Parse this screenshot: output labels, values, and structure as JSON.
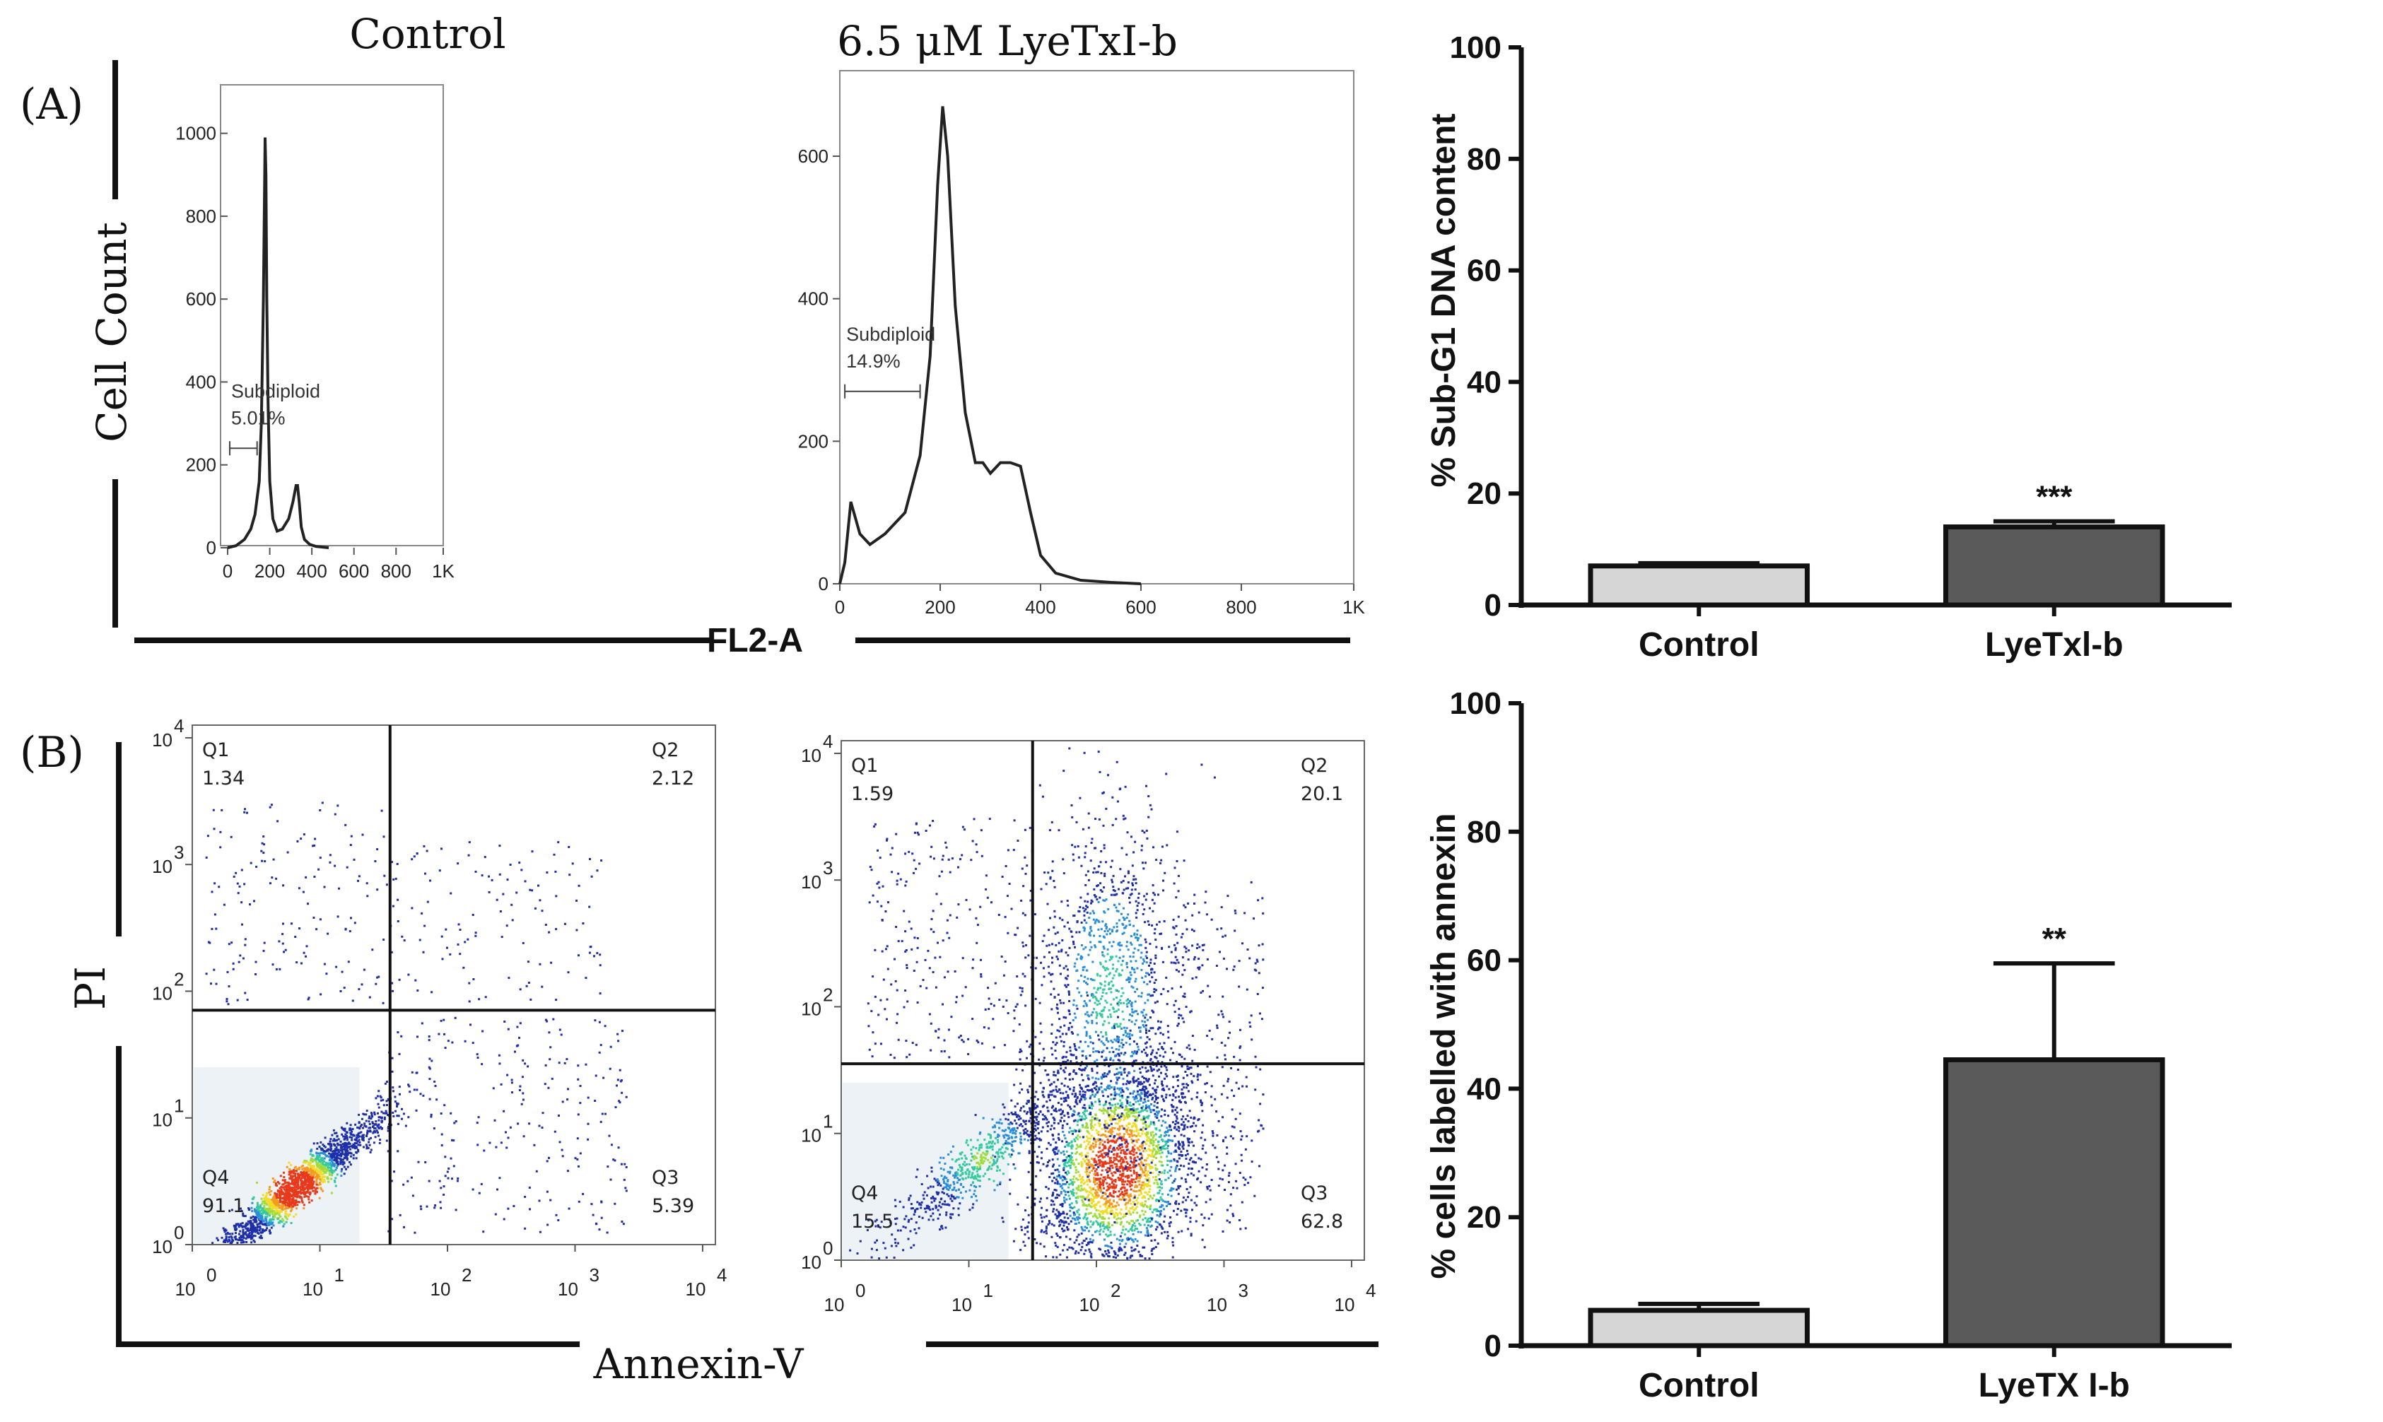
{
  "figure": {
    "panel_a_label": "(A)",
    "panel_b_label": "(B)"
  },
  "chart_data": [
    {
      "id": "hist-control",
      "type": "line",
      "title": "Control",
      "xlabel": "FL2-A",
      "ylabel": "Cell Count",
      "xlim": [
        0,
        1024
      ],
      "ylim": [
        0,
        1100
      ],
      "x_ticks": [
        "0",
        "200",
        "400",
        "600",
        "800",
        "1K"
      ],
      "y_ticks": [
        "0",
        "200",
        "400",
        "600",
        "800",
        "1000"
      ],
      "gate_label": "Subdiploid",
      "gate_value": "5.01%",
      "gate_range": [
        10,
        140
      ],
      "x": [
        0,
        40,
        80,
        110,
        130,
        150,
        160,
        170,
        178,
        182,
        186,
        192,
        200,
        215,
        235,
        260,
        290,
        310,
        325,
        332,
        340,
        350,
        365,
        390,
        420,
        480
      ],
      "y": [
        0,
        5,
        20,
        45,
        80,
        160,
        300,
        600,
        990,
        900,
        600,
        350,
        160,
        70,
        40,
        45,
        70,
        110,
        150,
        150,
        110,
        50,
        20,
        8,
        3,
        0
      ]
    },
    {
      "id": "hist-lyetx",
      "type": "line",
      "title": "6.5 μM LyeTxI-b",
      "xlabel": "FL2-A",
      "xlim": [
        0,
        1024
      ],
      "ylim": [
        0,
        720
      ],
      "x_ticks": [
        "0",
        "200",
        "400",
        "600",
        "800",
        "1K"
      ],
      "y_ticks": [
        "0",
        "200",
        "400",
        "600"
      ],
      "gate_label": "Subdiploid",
      "gate_value": "14.9%",
      "gate_range": [
        10,
        160
      ],
      "x": [
        0,
        10,
        22,
        40,
        60,
        90,
        130,
        160,
        180,
        195,
        205,
        215,
        230,
        250,
        270,
        285,
        300,
        320,
        340,
        360,
        380,
        400,
        430,
        480,
        540,
        600
      ],
      "y": [
        0,
        30,
        115,
        70,
        55,
        70,
        100,
        180,
        320,
        560,
        670,
        600,
        390,
        240,
        170,
        170,
        155,
        170,
        170,
        165,
        100,
        40,
        15,
        5,
        2,
        0
      ]
    },
    {
      "id": "bar-subg1",
      "type": "bar",
      "ylabel": "% Sub-G1 DNA content",
      "categories": [
        "Control",
        "LyeTxl-b"
      ],
      "values": [
        7,
        14
      ],
      "errors": [
        0.5,
        1
      ],
      "significance": [
        "",
        "***"
      ],
      "colors": [
        "#d6d6d6",
        "#5a5a5a"
      ],
      "ylim": [
        0,
        100
      ],
      "y_ticks": [
        "0",
        "20",
        "40",
        "60",
        "80",
        "100"
      ]
    },
    {
      "id": "bar-annexin",
      "type": "bar",
      "ylabel": "% cells labelled with annexin",
      "categories": [
        "Control",
        "LyeTX I-b"
      ],
      "values": [
        5.5,
        44.5
      ],
      "errors": [
        1,
        15
      ],
      "significance": [
        "",
        "**"
      ],
      "colors": [
        "#d6d6d6",
        "#5a5a5a"
      ],
      "ylim": [
        0,
        100
      ],
      "y_ticks": [
        "0",
        "20",
        "40",
        "60",
        "80",
        "100"
      ]
    },
    {
      "id": "dot-control",
      "type": "scatter",
      "xlabel": "Annexin-V",
      "ylabel": "PI",
      "x_ticks": [
        "10",
        "10",
        "10",
        "10",
        "10"
      ],
      "y_ticks": [
        "10",
        "10",
        "10",
        "10",
        "10"
      ],
      "tick_exponents": [
        "0",
        "1",
        "2",
        "3",
        "4"
      ],
      "gate_x": 1.55,
      "gate_y": 1.85,
      "quadrants": [
        {
          "name": "Q1",
          "value": "1.34"
        },
        {
          "name": "Q2",
          "value": "2.12"
        },
        {
          "name": "Q3",
          "value": "5.39"
        },
        {
          "name": "Q4",
          "value": "91.1"
        }
      ]
    },
    {
      "id": "dot-lyetx",
      "type": "scatter",
      "xlabel": "Annexin-V",
      "ylabel": "PI",
      "x_ticks": [
        "10",
        "10",
        "10",
        "10",
        "10"
      ],
      "y_ticks": [
        "10",
        "10",
        "10",
        "10",
        "10"
      ],
      "tick_exponents": [
        "0",
        "1",
        "2",
        "3",
        "4"
      ],
      "gate_x": 1.5,
      "gate_y": 1.55,
      "quadrants": [
        {
          "name": "Q1",
          "value": "1.59"
        },
        {
          "name": "Q2",
          "value": "20.1"
        },
        {
          "name": "Q3",
          "value": "62.8"
        },
        {
          "name": "Q4",
          "value": "15.5"
        }
      ]
    }
  ]
}
